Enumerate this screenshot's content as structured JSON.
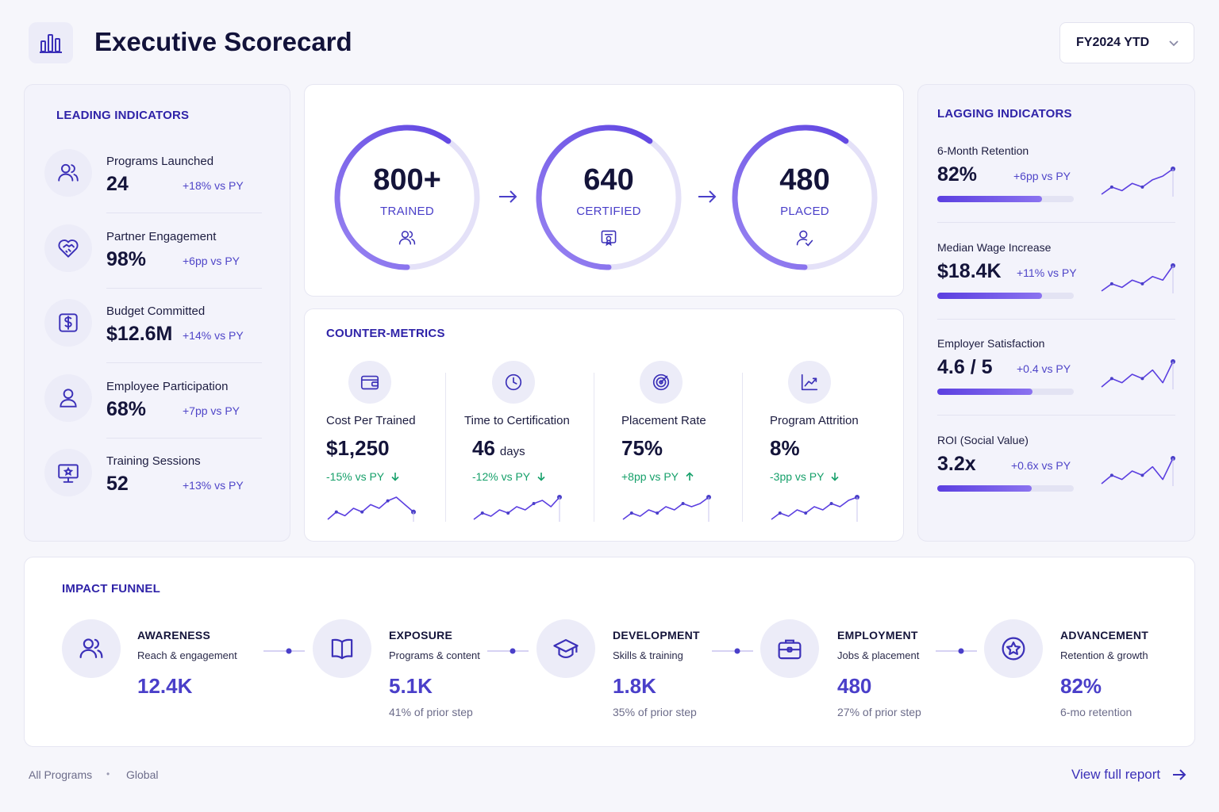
{
  "header": {
    "title": "Executive Scorecard",
    "period": "FY2024 YTD",
    "logo_icon": "bar-chart-icon"
  },
  "leading": {
    "title": "LEADING INDICATORS",
    "items": [
      {
        "label": "Programs Launched",
        "value": "24",
        "delta": "+18% vs PY",
        "icon": "users-icon"
      },
      {
        "label": "Partner Engagement",
        "value": "98%",
        "delta": "+6pp vs PY",
        "icon": "handshake-heart-icon"
      },
      {
        "label": "Budget Committed",
        "value": "$12.6M",
        "delta": "+14% vs PY",
        "icon": "dollar-icon"
      },
      {
        "label": "Employee Participation",
        "value": "68%",
        "delta": "+7pp vs PY",
        "icon": "user-icon"
      },
      {
        "label": "Training Sessions",
        "value": "52",
        "delta": "+13% vs PY",
        "icon": "presentation-icon"
      }
    ]
  },
  "pipeline": {
    "stages": [
      {
        "value": "800+",
        "label": "TRAINED",
        "icon": "users-icon",
        "progress": 0.6
      },
      {
        "value": "640",
        "label": "CERTIFIED",
        "icon": "certificate-icon",
        "progress": 0.6
      },
      {
        "value": "480",
        "label": "PLACED",
        "icon": "user-check-icon",
        "progress": 0.6
      }
    ]
  },
  "counter": {
    "title": "COUNTER-METRICS",
    "items": [
      {
        "label": "Cost Per Trained",
        "value": "$1,250",
        "unit": "",
        "delta": "-15% vs PY",
        "direction": "down",
        "icon": "wallet-icon",
        "trend": [
          3,
          5,
          4,
          6,
          5,
          7,
          6,
          8,
          9,
          7,
          5
        ]
      },
      {
        "label": "Time to Certification",
        "value": "46",
        "unit": "days",
        "delta": "-12% vs PY",
        "direction": "down",
        "icon": "clock-icon",
        "trend": [
          3,
          5,
          4,
          6,
          5,
          7,
          6,
          8,
          9,
          7,
          10
        ]
      },
      {
        "label": "Placement Rate",
        "value": "75%",
        "unit": "",
        "delta": "+8pp vs PY",
        "direction": "up",
        "icon": "target-icon",
        "trend": [
          3,
          5,
          4,
          6,
          5,
          7,
          6,
          8,
          7,
          8,
          10
        ]
      },
      {
        "label": "Program Attrition",
        "value": "8%",
        "unit": "",
        "delta": "-3pp vs PY",
        "direction": "down",
        "icon": "trend-up-icon",
        "trend": [
          3,
          5,
          4,
          6,
          5,
          7,
          6,
          8,
          7,
          9,
          10
        ]
      }
    ]
  },
  "lagging": {
    "title": "LAGGING INDICATORS",
    "items": [
      {
        "label": "6-Month Retention",
        "value": "82%",
        "delta": "+6pp vs PY",
        "progress": 0.77,
        "trend": [
          3,
          5,
          4,
          6,
          5,
          7,
          8,
          10
        ]
      },
      {
        "label": "Median Wage Increase",
        "value": "$18.4K",
        "delta": "+11% vs PY",
        "progress": 0.77,
        "trend": [
          3,
          5,
          4,
          6,
          5,
          7,
          6,
          10
        ]
      },
      {
        "label": "Employer Satisfaction",
        "value": "4.6 / 5",
        "delta": "+0.4 vs PY",
        "progress": 0.7,
        "trend": [
          3,
          5,
          4,
          6,
          5,
          7,
          4,
          9
        ]
      },
      {
        "label": "ROI (Social Value)",
        "value": "3.2x",
        "delta": "+0.6x vs PY",
        "progress": 0.69,
        "trend": [
          3,
          5,
          4,
          6,
          5,
          7,
          4,
          9
        ]
      }
    ]
  },
  "funnel": {
    "title": "IMPACT FUNNEL",
    "steps": [
      {
        "title": "AWARENESS",
        "sub": "Reach & engagement",
        "value": "12.4K",
        "note": "",
        "icon": "users-icon"
      },
      {
        "title": "EXPOSURE",
        "sub": "Programs & content",
        "value": "5.1K",
        "note": "41% of prior step",
        "icon": "book-icon"
      },
      {
        "title": "DEVELOPMENT",
        "sub": "Skills & training",
        "value": "1.8K",
        "note": "35% of prior step",
        "icon": "graduation-cap-icon"
      },
      {
        "title": "EMPLOYMENT",
        "sub": "Jobs & placement",
        "value": "480",
        "note": "27% of prior step",
        "icon": "briefcase-icon"
      },
      {
        "title": "ADVANCEMENT",
        "sub": "Retention & growth",
        "value": "82%",
        "note": "6-mo retention",
        "icon": "star-badge-icon"
      }
    ]
  },
  "footer": {
    "scope": "All Programs",
    "separator": "•",
    "region": "Global",
    "link": "View full report"
  },
  "colors": {
    "accent": "#4a3fc9",
    "positive": "#16a06a",
    "ring_light": "#e4e1f8"
  }
}
